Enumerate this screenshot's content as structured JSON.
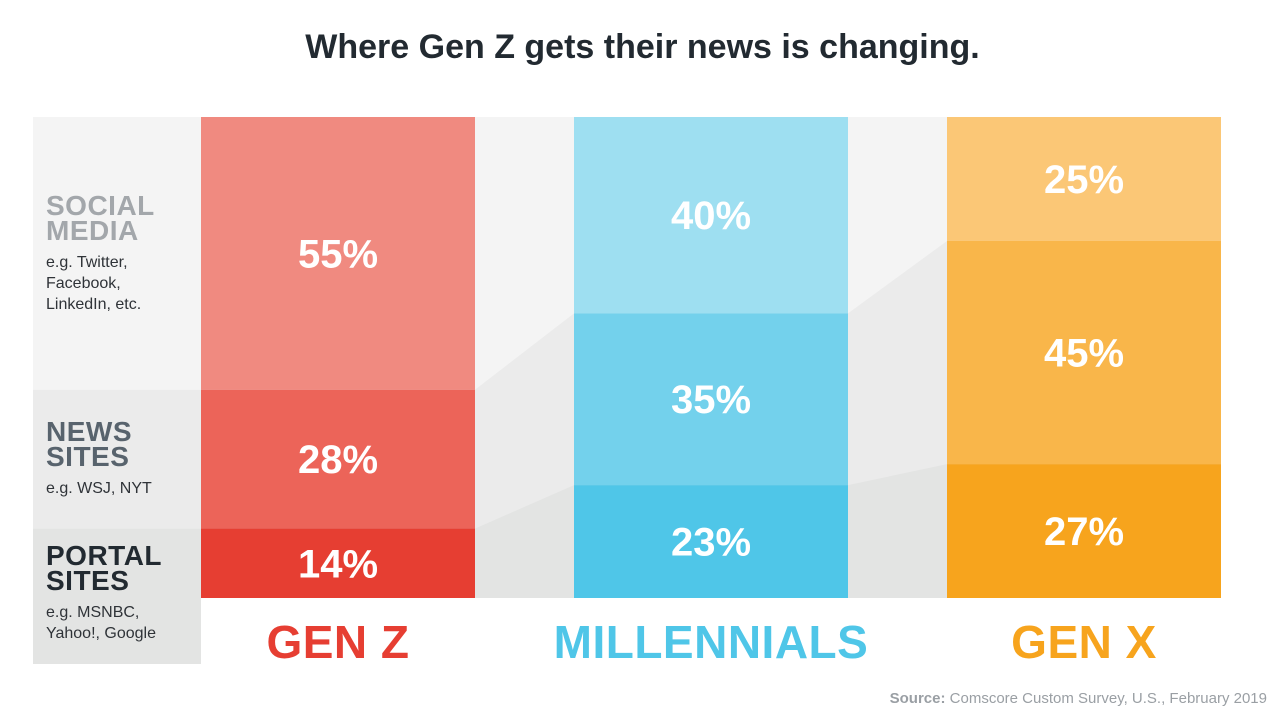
{
  "title": "Where Gen Z gets their news is changing.",
  "source": {
    "label": "Source:",
    "text": "Comscore Custom Survey, U.S., February 2019"
  },
  "rows": [
    {
      "name": "SOCIAL\nMEDIA",
      "examples": "e.g. Twitter,\nFacebook,\nLinkedIn, etc.",
      "color": "#a3a7ab"
    },
    {
      "name": "NEWS\nSITES",
      "examples": "e.g. WSJ, NYT",
      "color": "#58636d"
    },
    {
      "name": "PORTAL\nSITES",
      "examples": "e.g. MSNBC,\nYahoo!, Google",
      "color": "#222a31"
    }
  ],
  "chart_data": {
    "type": "bar",
    "stacked": true,
    "orientation": "vertical",
    "title": "Where Gen Z gets their news is changing.",
    "categories": [
      "GEN Z",
      "MILLENNIALS",
      "GEN X"
    ],
    "category_colors": [
      "#e63e32",
      "#4fc6e8",
      "#f7a41d"
    ],
    "series": [
      {
        "name": "SOCIAL MEDIA",
        "values": [
          55,
          40,
          25
        ],
        "labels": [
          "55%",
          "40%",
          "25%"
        ],
        "colors": [
          "#f08a80",
          "#9edff1",
          "#fbc776"
        ]
      },
      {
        "name": "NEWS SITES",
        "values": [
          28,
          35,
          45
        ],
        "labels": [
          "28%",
          "35%",
          "45%"
        ],
        "colors": [
          "#ec6459",
          "#73d1ec",
          "#f9b64a"
        ]
      },
      {
        "name": "PORTAL SITES",
        "values": [
          14,
          23,
          27
        ],
        "labels": [
          "14%",
          "23%",
          "27%"
        ],
        "colors": [
          "#e63e32",
          "#4fc6e8",
          "#f7a41d"
        ]
      }
    ],
    "legend": "left",
    "grid": false
  }
}
